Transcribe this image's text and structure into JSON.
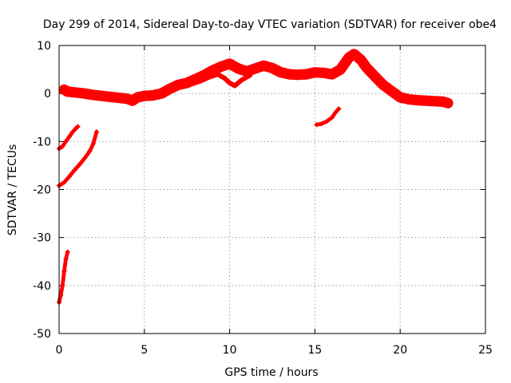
{
  "chart_data": {
    "type": "scatter",
    "title": "Day 299 of 2014, Sidereal Day-to-day VTEC variation (SDTVAR) for receiver obe4",
    "xlabel": "GPS time / hours",
    "ylabel": "SDTVAR / TECUs",
    "xlim": [
      0,
      25
    ],
    "ylim": [
      -50,
      10
    ],
    "xticks": [
      0,
      5,
      10,
      15,
      20,
      25
    ],
    "yticks": [
      -50,
      -40,
      -30,
      -20,
      -10,
      0,
      10
    ],
    "grid": true,
    "marker": "+",
    "color": "#ff0000",
    "series": [
      {
        "name": "main-track",
        "band": 2.2,
        "points": [
          [
            0.3,
            0.8
          ],
          [
            0.5,
            0.4
          ],
          [
            1.0,
            0.2
          ],
          [
            1.5,
            0.0
          ],
          [
            2.0,
            -0.3
          ],
          [
            2.5,
            -0.5
          ],
          [
            3.0,
            -0.7
          ],
          [
            3.5,
            -0.9
          ],
          [
            4.0,
            -1.1
          ],
          [
            4.3,
            -1.5
          ],
          [
            4.6,
            -0.8
          ],
          [
            5.0,
            -0.5
          ],
          [
            5.5,
            -0.4
          ],
          [
            6.0,
            0.0
          ],
          [
            6.5,
            1.0
          ],
          [
            7.0,
            1.8
          ],
          [
            7.5,
            2.2
          ],
          [
            8.0,
            3.0
          ],
          [
            8.5,
            3.8
          ],
          [
            9.0,
            4.8
          ],
          [
            9.5,
            5.6
          ],
          [
            10.0,
            6.2
          ],
          [
            10.5,
            5.2
          ],
          [
            11.0,
            4.6
          ],
          [
            11.5,
            5.2
          ],
          [
            12.0,
            5.8
          ],
          [
            12.5,
            5.3
          ],
          [
            13.0,
            4.4
          ],
          [
            13.5,
            4.0
          ],
          [
            14.0,
            3.9
          ],
          [
            14.5,
            4.0
          ],
          [
            15.0,
            4.4
          ],
          [
            15.5,
            4.3
          ],
          [
            16.0,
            4.0
          ],
          [
            16.5,
            5.0
          ],
          [
            17.0,
            7.5
          ],
          [
            17.3,
            8.2
          ],
          [
            17.7,
            7.0
          ],
          [
            18.0,
            5.5
          ],
          [
            18.5,
            3.6
          ],
          [
            19.0,
            1.8
          ],
          [
            19.5,
            0.5
          ],
          [
            20.0,
            -0.8
          ],
          [
            20.5,
            -1.2
          ],
          [
            21.0,
            -1.4
          ],
          [
            21.5,
            -1.5
          ],
          [
            22.0,
            -1.6
          ],
          [
            22.5,
            -1.7
          ],
          [
            22.8,
            -2.0
          ]
        ]
      },
      {
        "name": "lower-branch",
        "band": 1.0,
        "points": [
          [
            7.8,
            2.0
          ],
          [
            8.3,
            2.6
          ],
          [
            8.8,
            3.4
          ],
          [
            9.3,
            4.0
          ],
          [
            9.7,
            3.2
          ],
          [
            10.0,
            2.2
          ],
          [
            10.3,
            1.6
          ],
          [
            10.7,
            2.8
          ],
          [
            11.2,
            3.8
          ]
        ]
      },
      {
        "name": "arc-1",
        "band": 0.8,
        "points": [
          [
            0.0,
            -11.5
          ],
          [
            0.2,
            -11.0
          ],
          [
            0.4,
            -10.0
          ],
          [
            0.6,
            -9.0
          ],
          [
            0.8,
            -8.0
          ],
          [
            1.0,
            -7.2
          ],
          [
            1.1,
            -6.9
          ]
        ]
      },
      {
        "name": "arc-2",
        "band": 0.8,
        "points": [
          [
            0.0,
            -19.2
          ],
          [
            0.3,
            -18.5
          ],
          [
            0.6,
            -17.3
          ],
          [
            0.9,
            -16.0
          ],
          [
            1.2,
            -14.8
          ],
          [
            1.5,
            -13.5
          ],
          [
            1.8,
            -12.0
          ],
          [
            2.0,
            -10.5
          ],
          [
            2.2,
            -8.0
          ]
        ]
      },
      {
        "name": "arc-3",
        "band": 0.8,
        "points": [
          [
            0.0,
            -43.5
          ],
          [
            0.1,
            -42.0
          ],
          [
            0.2,
            -40.0
          ],
          [
            0.3,
            -37.0
          ],
          [
            0.4,
            -34.5
          ],
          [
            0.5,
            -33.0
          ]
        ]
      },
      {
        "name": "arc-4",
        "band": 0.8,
        "points": [
          [
            15.1,
            -6.5
          ],
          [
            15.4,
            -6.3
          ],
          [
            15.7,
            -5.8
          ],
          [
            16.0,
            -5.0
          ],
          [
            16.2,
            -4.0
          ],
          [
            16.4,
            -3.2
          ]
        ]
      }
    ]
  }
}
